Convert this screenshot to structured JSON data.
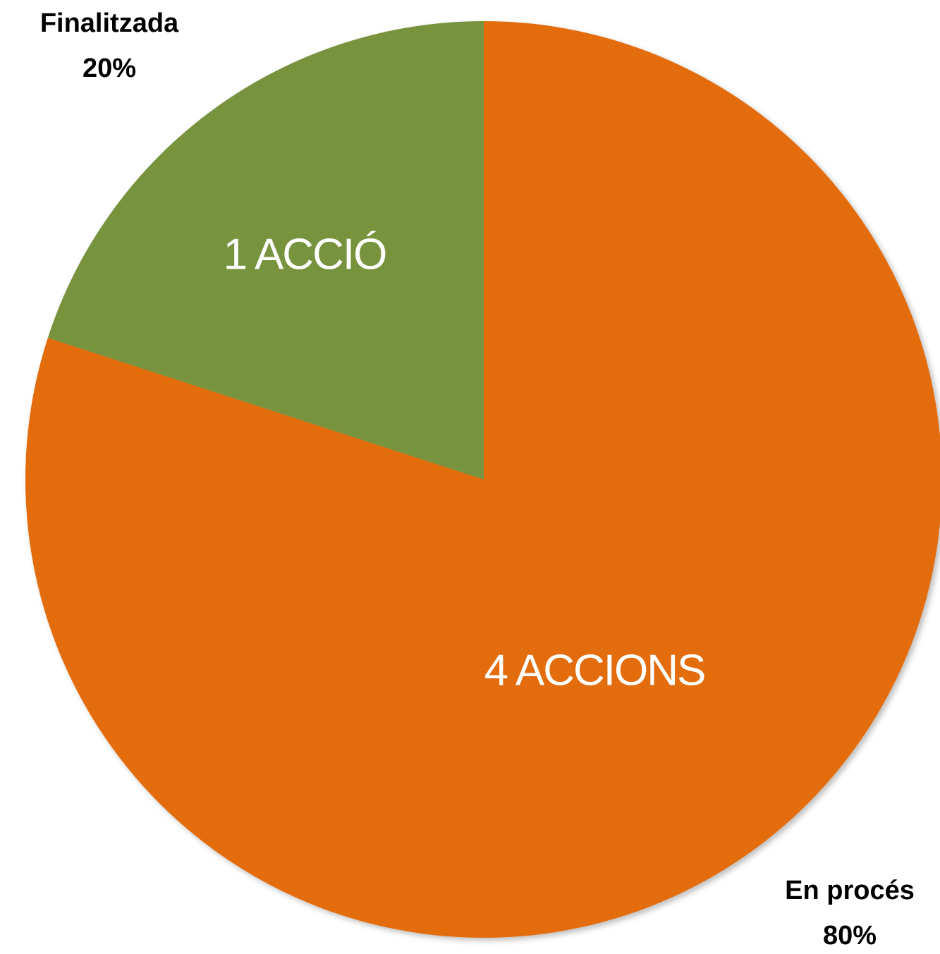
{
  "chart_data": {
    "type": "pie",
    "categories": [
      "En procés",
      "Finalitzada"
    ],
    "values": [
      80,
      20
    ],
    "value_labels": [
      "80%",
      "20%"
    ],
    "annotations": [
      "4 ACCIONS",
      "1 ACCIÓ"
    ],
    "colors": [
      "#e36c0a",
      "#77933c"
    ]
  }
}
